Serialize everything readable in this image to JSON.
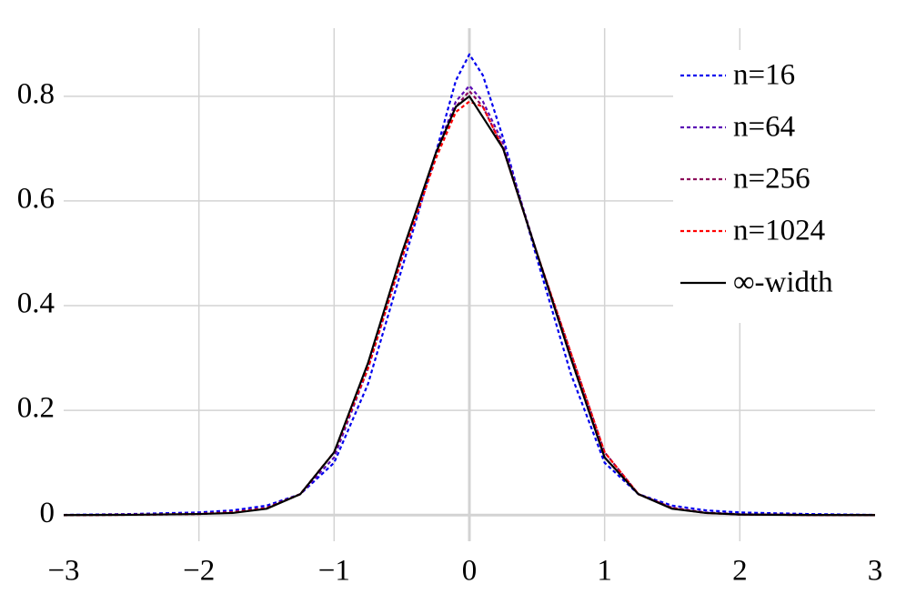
{
  "chart_data": {
    "type": "line",
    "x": [
      -3,
      -2.5,
      -2,
      -1.75,
      -1.5,
      -1.25,
      -1,
      -0.75,
      -0.5,
      -0.25,
      -0.1,
      0,
      0.1,
      0.25,
      0.5,
      0.75,
      1,
      1.25,
      1.5,
      1.75,
      2,
      2.5,
      3
    ],
    "series": [
      {
        "name": "n=16",
        "color": "#0000ee",
        "style": "dotted",
        "values": [
          0.0003,
          0.002,
          0.005,
          0.009,
          0.018,
          0.04,
          0.1,
          0.25,
          0.47,
          0.69,
          0.83,
          0.88,
          0.84,
          0.72,
          0.49,
          0.27,
          0.1,
          0.04,
          0.018,
          0.009,
          0.005,
          0.002,
          0.0003
        ]
      },
      {
        "name": "n=64",
        "color": "#5a0ab4",
        "style": "dotted",
        "values": [
          0,
          0.0008,
          0.003,
          0.006,
          0.014,
          0.04,
          0.11,
          0.28,
          0.49,
          0.69,
          0.79,
          0.82,
          0.79,
          0.71,
          0.5,
          0.3,
          0.11,
          0.04,
          0.014,
          0.005,
          0.0015,
          0.0003,
          0
        ]
      },
      {
        "name": "n=256",
        "color": "#8c0a5a",
        "style": "dotted",
        "values": [
          0,
          0.0006,
          0.002,
          0.005,
          0.013,
          0.04,
          0.12,
          0.28,
          0.49,
          0.68,
          0.78,
          0.81,
          0.78,
          0.7,
          0.5,
          0.31,
          0.12,
          0.04,
          0.013,
          0.004,
          0.001,
          0.0002,
          0
        ]
      },
      {
        "name": "n=1024",
        "color": "#ff0000",
        "style": "dotted",
        "values": [
          0,
          0.0005,
          0.002,
          0.005,
          0.013,
          0.04,
          0.12,
          0.28,
          0.49,
          0.68,
          0.77,
          0.79,
          0.78,
          0.7,
          0.5,
          0.31,
          0.12,
          0.04,
          0.013,
          0.004,
          0.001,
          0.0002,
          0
        ]
      },
      {
        "name": "∞-width",
        "color": "#000000",
        "style": "solid",
        "values": [
          0,
          0.0005,
          0.002,
          0.004,
          0.012,
          0.04,
          0.12,
          0.29,
          0.5,
          0.69,
          0.78,
          0.8,
          0.76,
          0.7,
          0.5,
          0.3,
          0.11,
          0.04,
          0.012,
          0.004,
          0.001,
          0.0002,
          0
        ]
      }
    ],
    "xlim": [
      -3,
      3
    ],
    "ylim": [
      -0.05,
      0.93
    ],
    "xticks": [
      {
        "value": -3,
        "label": "−3"
      },
      {
        "value": -2,
        "label": "−2"
      },
      {
        "value": -1,
        "label": "−1"
      },
      0,
      1,
      2,
      3
    ],
    "yticks": [
      0,
      0.2,
      0.4,
      0.6,
      0.8
    ],
    "grid": true,
    "legend": "top-right"
  }
}
